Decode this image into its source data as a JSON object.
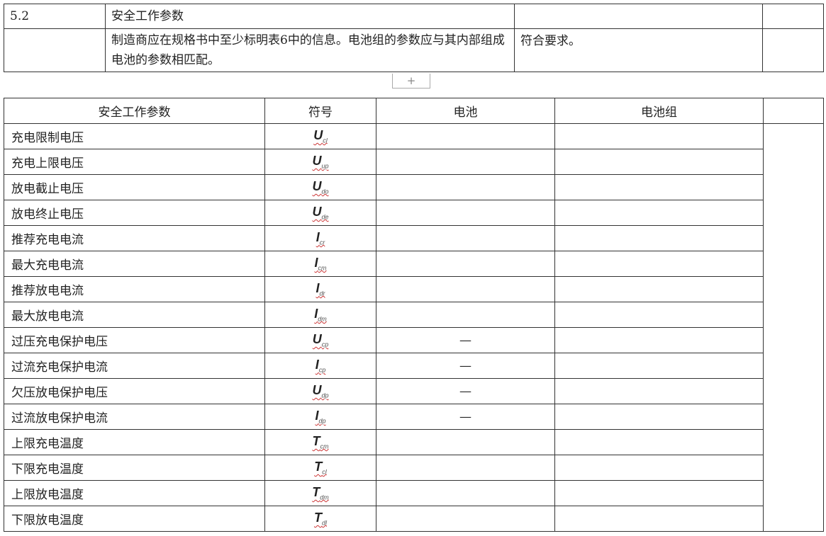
{
  "clause": {
    "number": "5.2",
    "title": "安全工作参数",
    "requirement": "制造商应在规格书中至少标明表6中的信息。电池组的参数应与其内部组成电池的参数相匹配。",
    "result": "符合要求。"
  },
  "add_button": "+",
  "table": {
    "headers": [
      "安全工作参数",
      "符号",
      "电池",
      "电池组"
    ],
    "rows": [
      {
        "param": "充电限制电压",
        "sym": "U",
        "sub": "cl",
        "cell": ""
      },
      {
        "param": "充电上限电压",
        "sym": "U",
        "sub": "up",
        "cell": ""
      },
      {
        "param": "放电截止电压",
        "sym": "U",
        "sub": "do",
        "cell": ""
      },
      {
        "param": "放电终止电压",
        "sym": "U",
        "sub": "de",
        "cell": ""
      },
      {
        "param": "推荐充电电流",
        "sym": "I",
        "sub": "cr",
        "cell": ""
      },
      {
        "param": "最大充电电流",
        "sym": "I",
        "sub": "cm",
        "cell": ""
      },
      {
        "param": "推荐放电电流",
        "sym": "I",
        "sub": "dr",
        "cell": ""
      },
      {
        "param": "最大放电电流",
        "sym": "I",
        "sub": "dm",
        "cell": ""
      },
      {
        "param": "过压充电保护电压",
        "sym": "U",
        "sub": "cp",
        "cell": "—"
      },
      {
        "param": "过流充电保护电流",
        "sym": "I",
        "sub": "cp",
        "cell": "—"
      },
      {
        "param": "欠压放电保护电压",
        "sym": "U",
        "sub": "dp",
        "cell": "—"
      },
      {
        "param": "过流放电保护电流",
        "sym": "I",
        "sub": "dp",
        "cell": "—"
      },
      {
        "param": "上限充电温度",
        "sym": "T",
        "sub": "cm",
        "cell": ""
      },
      {
        "param": "下限充电温度",
        "sym": "T",
        "sub": "cl",
        "cell": ""
      },
      {
        "param": "上限放电温度",
        "sym": "T",
        "sub": "dm",
        "cell": ""
      },
      {
        "param": "下限放电温度",
        "sym": "T",
        "sub": "dl",
        "cell": ""
      }
    ]
  }
}
